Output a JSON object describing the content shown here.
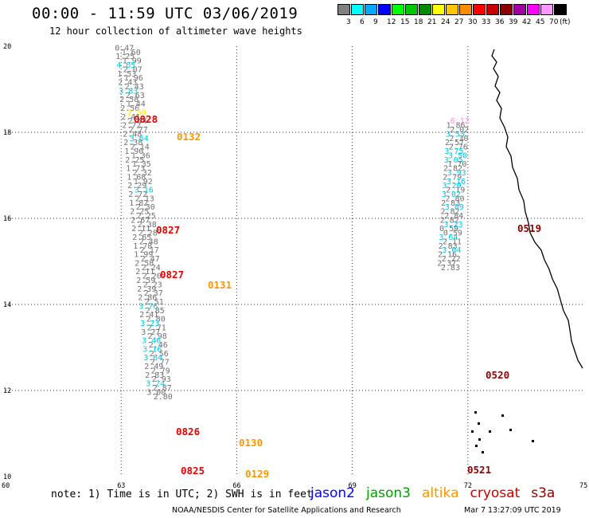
{
  "title": "00:00 - 11:59 UTC 03/06/2019",
  "subtitle": "12 hour collection of altimeter wave heights",
  "legend": {
    "colors": [
      "#808080",
      "#00ffff",
      "#00a8ff",
      "#0000ff",
      "#00ff00",
      "#00c800",
      "#008c00",
      "#ffff00",
      "#ffc800",
      "#ff8c00",
      "#ff0000",
      "#c80000",
      "#8c0000",
      "#a000a0",
      "#ff00ff",
      "#ff96ff",
      "#000000"
    ],
    "levels": [
      "3",
      "6",
      "9",
      "12",
      "15",
      "18",
      "21",
      "24",
      "27",
      "30",
      "33",
      "36",
      "39",
      "42",
      "45",
      "70",
      "(ft)"
    ]
  },
  "axes": {
    "x_ticks": [
      "60",
      "63",
      "66",
      "69",
      "72",
      "75"
    ],
    "y_ticks": [
      "20",
      "18",
      "16",
      "14",
      "12",
      "10"
    ]
  },
  "colors": {
    "gray": "#707070",
    "cyan": "#00c8e6",
    "red": "#e60000",
    "orange": "#ff9600",
    "darkred": "#8c0000",
    "yellow": "#ffe600",
    "pink": "#ff96dc"
  },
  "tracks": [
    {
      "lon": 63.0,
      "start_lat": 19.9,
      "step": -0.1,
      "values": [
        [
          "0.47",
          "g"
        ],
        [
          "1.60",
          "g"
        ],
        [
          "1.25",
          "g"
        ],
        [
          "1.99",
          "g"
        ],
        [
          "4.05",
          "c"
        ],
        [
          "2.07",
          "g"
        ],
        [
          "1.53",
          "g"
        ],
        [
          "1.96",
          "g"
        ],
        [
          "2.43",
          "g"
        ],
        [
          "2.43",
          "g"
        ],
        [
          "3.83",
          "c"
        ],
        [
          "2.63",
          "g"
        ],
        [
          "2.58",
          "g"
        ],
        [
          "1.44",
          "g"
        ],
        [
          "2.56",
          "g"
        ],
        [
          "2.50",
          "y"
        ],
        [
          "2.41",
          "g"
        ],
        [
          "2.44",
          "g"
        ],
        [
          "2.72",
          "g"
        ],
        [
          "2.77",
          "g"
        ],
        [
          "2.48",
          "g"
        ],
        [
          "3.64",
          "c"
        ],
        [
          "2.38",
          "g"
        ],
        [
          "2.14",
          "g"
        ],
        [
          "1.90",
          "g"
        ],
        [
          "1.36",
          "g"
        ],
        [
          "2.25",
          "g"
        ],
        [
          "1.35",
          "g"
        ],
        [
          "1.73",
          "g"
        ],
        [
          "2.32",
          "g"
        ],
        [
          "1.68",
          "g"
        ],
        [
          "1.92",
          "g"
        ],
        [
          "2.29",
          "g"
        ],
        [
          "3.16",
          "c"
        ],
        [
          "2.72",
          "g"
        ],
        [
          "2.13",
          "g"
        ],
        [
          "1.82",
          "g"
        ],
        [
          "2.30",
          "g"
        ],
        [
          "2.25",
          "g"
        ],
        [
          "2.25",
          "g"
        ],
        [
          "2.67",
          "g"
        ],
        [
          "2.38",
          "g"
        ],
        [
          "2.11",
          "g"
        ],
        [
          "2.28",
          "g"
        ],
        [
          "2.65",
          "g"
        ],
        [
          "2.48",
          "g"
        ],
        [
          "1.78",
          "g"
        ],
        [
          "2.17",
          "g"
        ],
        [
          "1.99",
          "g"
        ],
        [
          "2.47",
          "g"
        ],
        [
          "2.58",
          "g"
        ],
        [
          "2.24",
          "g"
        ],
        [
          "2.11",
          "g"
        ],
        [
          "2.20",
          "g"
        ],
        [
          "2.59",
          "g"
        ],
        [
          "2.23",
          "g"
        ],
        [
          "2.39",
          "g"
        ],
        [
          "2.37",
          "g"
        ],
        [
          "2.86",
          "g"
        ],
        [
          "2.51",
          "g"
        ],
        [
          "3.76",
          "c"
        ],
        [
          "2.85",
          "g"
        ],
        [
          "2.41",
          "g"
        ],
        [
          "2.80",
          "g"
        ],
        [
          "3.23",
          "c"
        ],
        [
          "2.71",
          "g"
        ],
        [
          "3.27",
          "g"
        ],
        [
          "2.98",
          "g"
        ],
        [
          "3.46",
          "c"
        ],
        [
          "2.46",
          "g"
        ],
        [
          "3.16",
          "c"
        ],
        [
          "2.56",
          "g"
        ],
        [
          "3.64",
          "c"
        ],
        [
          "2.77",
          "g"
        ],
        [
          "2.49",
          "g"
        ],
        [
          "2.79",
          "g"
        ],
        [
          "2.83",
          "g"
        ],
        [
          "2.93",
          "g"
        ],
        [
          "3.24",
          "c"
        ],
        [
          "2.87",
          "g"
        ],
        [
          "3.00",
          "g"
        ],
        [
          "2.80",
          "g"
        ]
      ]
    },
    {
      "lon": 72.0,
      "start_lat": 18.2,
      "step": -0.1,
      "values": [
        [
          "6.12",
          "p"
        ],
        [
          "1.86",
          "g"
        ],
        [
          "2.02",
          "g"
        ],
        [
          "3.53",
          "c"
        ],
        [
          "2.30",
          "g"
        ],
        [
          "2.57",
          "g"
        ],
        [
          "2.76",
          "g"
        ],
        [
          "3.75",
          "c"
        ],
        [
          "3.50",
          "c"
        ],
        [
          "3.05",
          "c"
        ],
        [
          "1.70",
          "g"
        ],
        [
          "2.82",
          "g"
        ],
        [
          "3.93",
          "c"
        ],
        [
          "2.79",
          "g"
        ],
        [
          "3.16",
          "c"
        ],
        [
          "3.20",
          "c"
        ],
        [
          "2.19",
          "g"
        ],
        [
          "3.02",
          "c"
        ],
        [
          "2.80",
          "g"
        ],
        [
          "2.83",
          "g"
        ],
        [
          "3.09",
          "c"
        ],
        [
          "2.82",
          "g"
        ],
        [
          "2.84",
          "g"
        ],
        [
          "2.82",
          "g"
        ],
        [
          "3.23",
          "c"
        ],
        [
          "0.59",
          "g"
        ],
        [
          "0.59",
          "g"
        ],
        [
          "3.64",
          "c"
        ],
        [
          "2.11",
          "g"
        ],
        [
          "2.83",
          "g"
        ],
        [
          "3.04",
          "c"
        ],
        [
          "2.16",
          "g"
        ],
        [
          "2.22",
          "g"
        ],
        [
          "2.37",
          "g"
        ],
        [
          "2.83",
          "g"
        ]
      ]
    }
  ],
  "times": [
    {
      "t": "0828",
      "c": "red"
    },
    {
      "t": "0132",
      "c": "orange"
    },
    {
      "t": "0827",
      "c": "red"
    },
    {
      "t": "0827",
      "c": "red"
    },
    {
      "t": "0131",
      "c": "orange"
    },
    {
      "t": "0826",
      "c": "red"
    },
    {
      "t": "0130",
      "c": "orange"
    },
    {
      "t": "0825",
      "c": "red"
    },
    {
      "t": "0129",
      "c": "orange"
    },
    {
      "t": "0519",
      "c": "darkred"
    },
    {
      "t": "0520",
      "c": "darkred"
    },
    {
      "t": "0521",
      "c": "darkred"
    }
  ],
  "note": "note: 1) Time is in UTC; 2) SWH is in feet",
  "satellites": [
    {
      "name": "jason2",
      "color": "#0000ff"
    },
    {
      "name": "jason3",
      "color": "#00a000"
    },
    {
      "name": "altika",
      "color": "#ff9600"
    },
    {
      "name": "cryosat",
      "color": "#c80000"
    },
    {
      "name": "s3a",
      "color": "#8c0000"
    }
  ],
  "credit": "NOAA/NESDIS Center for Satellite Applications and Research",
  "timestamp": "Mar  7 13:27:09 UTC 2019"
}
